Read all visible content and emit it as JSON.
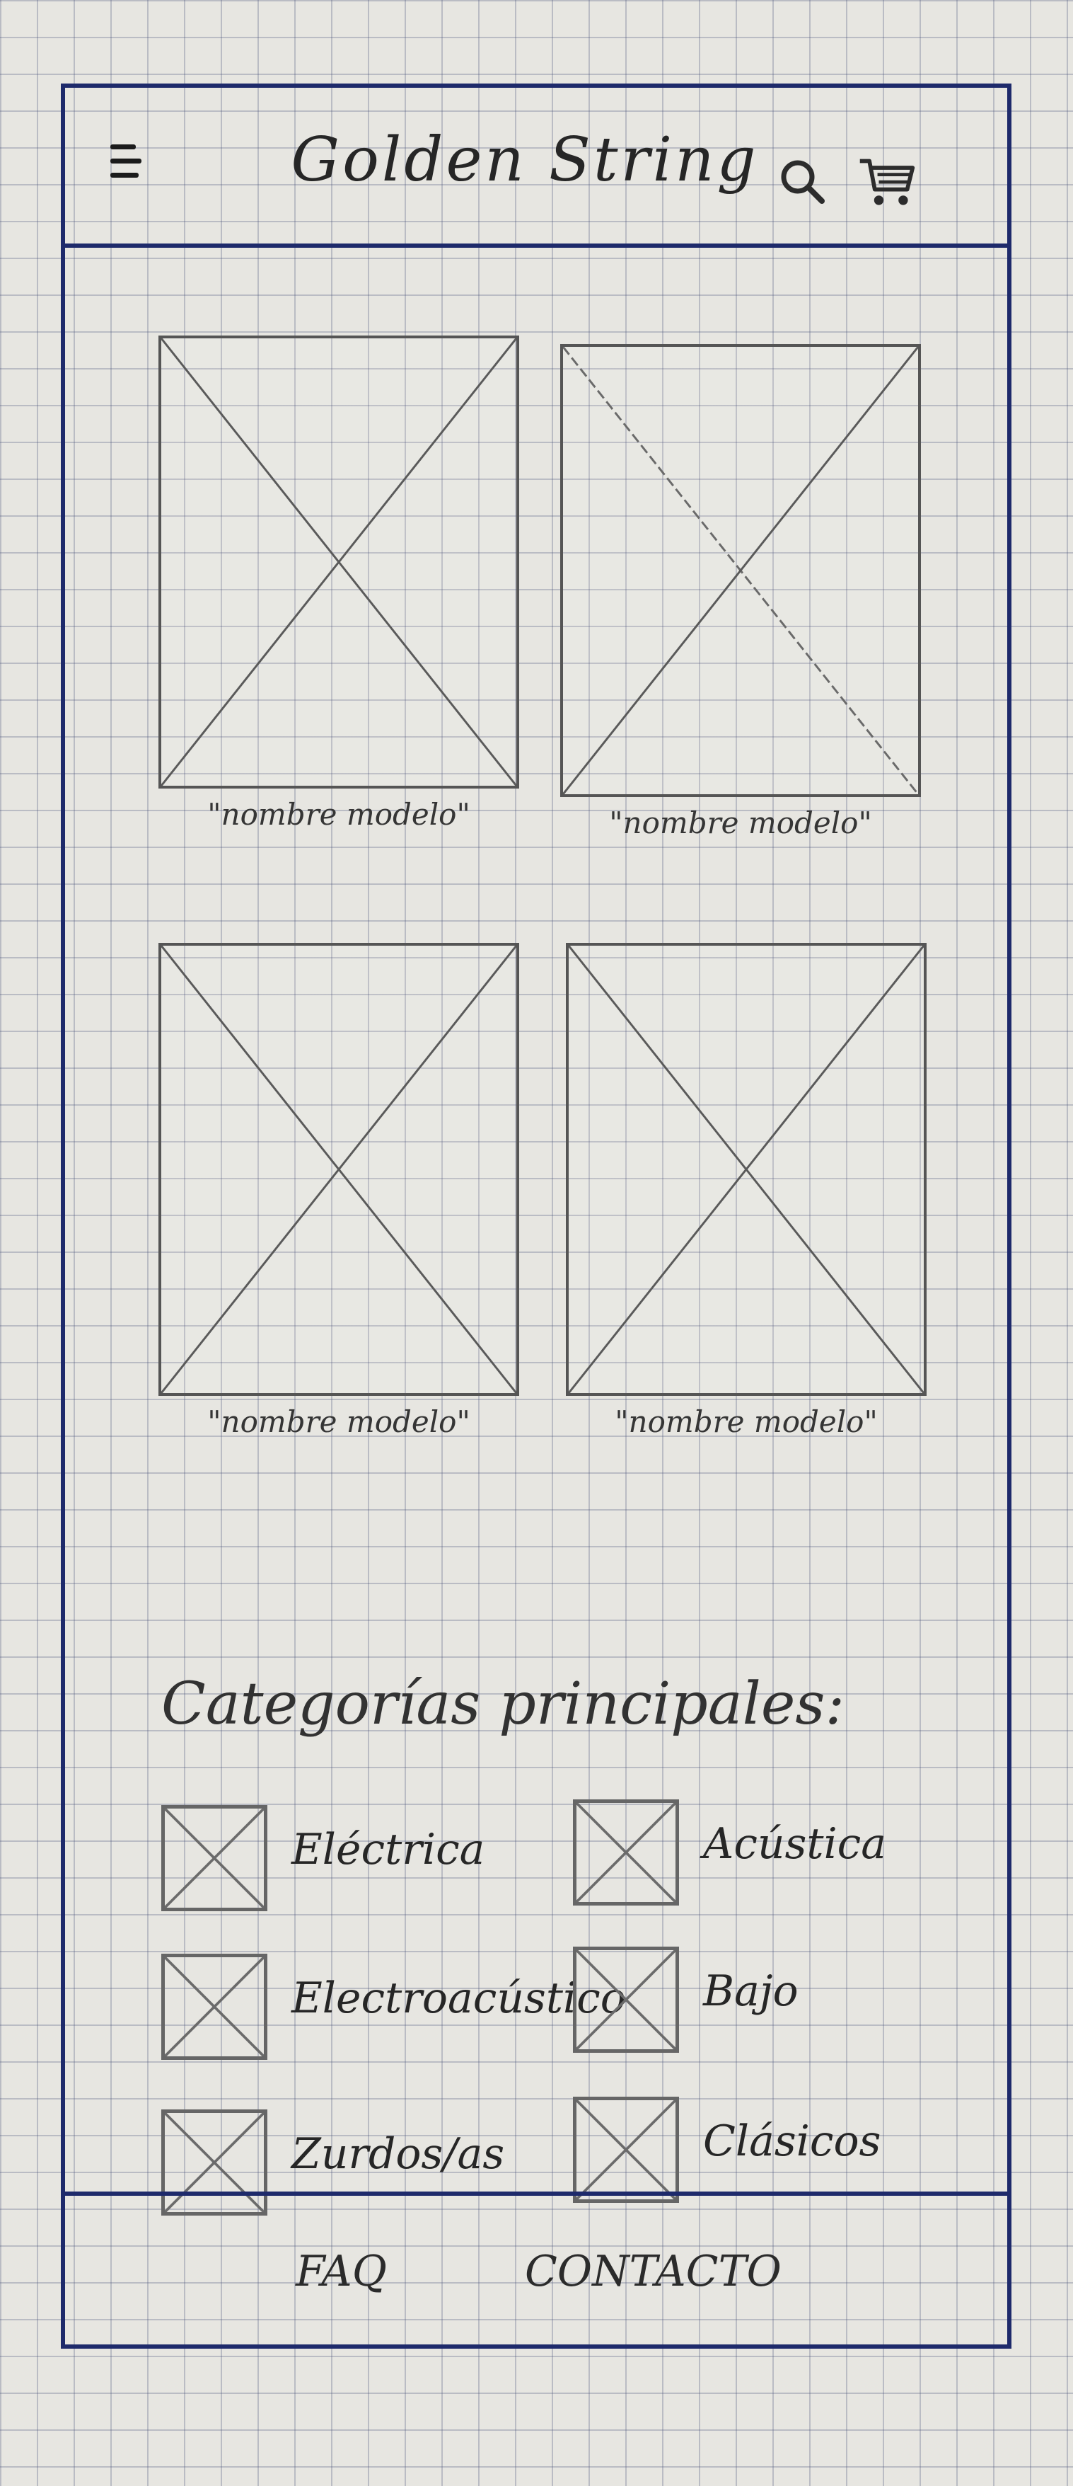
{
  "header": {
    "title": "Golden String",
    "menu_icon": "hamburger-icon",
    "search_icon": "search-icon",
    "cart_icon": "cart-icon"
  },
  "products": [
    {
      "caption": "\"nombre modelo\""
    },
    {
      "caption": "\"nombre modelo\""
    },
    {
      "caption": "\"nombre modelo\""
    },
    {
      "caption": "\"nombre modelo\""
    }
  ],
  "categories": {
    "title": "Categorías principales:",
    "items": [
      {
        "label": "Eléctrica"
      },
      {
        "label": "Acústica"
      },
      {
        "label": "Electroacústico"
      },
      {
        "label": "Bajo"
      },
      {
        "label": "Zurdos/as"
      },
      {
        "label": "Clásicos"
      }
    ]
  },
  "footer": {
    "faq": "FAQ",
    "contact": "CONTACTO"
  },
  "colors": {
    "frame": "#1e2a6b",
    "grid": "#465078",
    "paper": "#e7e6e1",
    "pencil": "#555555"
  }
}
